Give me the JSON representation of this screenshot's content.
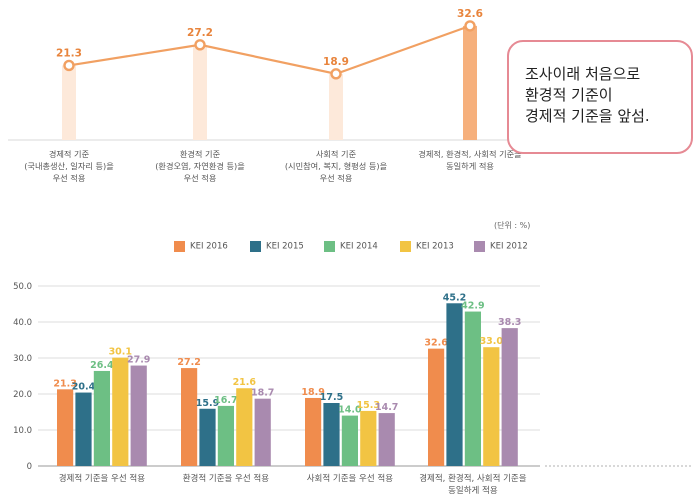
{
  "colors": {
    "line": "#f1a062",
    "line_bar": "#fde9da",
    "line_last_bar": "#f6b07c",
    "line_value": "#e8843c",
    "axis_text": "#555555",
    "grid": "#dddddd",
    "callout_border": "#e68a94"
  },
  "chart_data": [
    {
      "type": "line",
      "categories": [
        "경제적 기준\n(국내총생산, 일자리 등)을\n우선 적용",
        "환경적 기준\n(환경오염, 자연환경 등)을\n우선 적용",
        "사회적 기준\n(시민참여, 복지, 형평성 등)을\n우선 적용",
        "경제적, 환경적, 사회적 기준을\n동일하게 적용"
      ],
      "values": [
        21.3,
        27.2,
        18.9,
        32.6
      ],
      "ylim": [
        0,
        36
      ],
      "grid": false,
      "legend": "none"
    },
    {
      "type": "bar",
      "categories": [
        "경제적 기준을 우선 적용",
        "환경적 기준을 우선 적용",
        "사회적 기준을 우선 적용",
        "경제적, 환경적, 사회적 기준을\n동일하게 적용"
      ],
      "series": [
        {
          "name": "KEI 2016",
          "color": "#f08c4d",
          "values": [
            21.3,
            27.2,
            18.9,
            32.6
          ]
        },
        {
          "name": "KEI 2015",
          "color": "#2e7089",
          "values": [
            20.4,
            15.9,
            17.5,
            45.2
          ]
        },
        {
          "name": "KEI 2014",
          "color": "#6dbf84",
          "values": [
            26.4,
            16.7,
            14.0,
            42.9
          ]
        },
        {
          "name": "KEI 2013",
          "color": "#f2c443",
          "values": [
            30.1,
            21.6,
            15.3,
            33.0
          ]
        },
        {
          "name": "KEI 2012",
          "color": "#a98aaf",
          "values": [
            27.9,
            18.7,
            14.7,
            38.3
          ]
        }
      ],
      "yticks": [
        "0",
        "10.0",
        "20.0",
        "30.0",
        "40.0",
        "50.0"
      ],
      "ylim": [
        0,
        50
      ],
      "unit": "(단위 : %)",
      "grid": true,
      "legend": "top"
    }
  ],
  "callout": {
    "lines": [
      "조사이래 처음으로",
      "환경적 기준이",
      "경제적 기준을 앞섬."
    ]
  }
}
